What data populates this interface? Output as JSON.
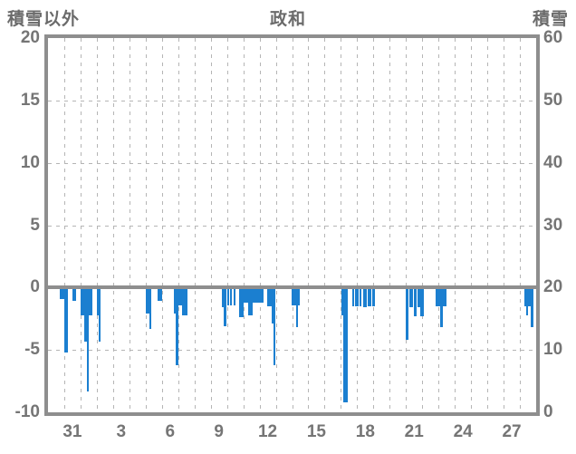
{
  "header": {
    "left_axis_title": "積雪以外",
    "chart_title": "政和",
    "right_axis_title": "積雪"
  },
  "colors": {
    "bar": "#1b7fd0",
    "frame": "#8e8e8e",
    "grid": "#b5b5b5",
    "text": "#757575"
  },
  "chart_data": {
    "type": "bar",
    "title": "政和",
    "left_axis": {
      "label": "積雪以外",
      "ticks": [
        20,
        15,
        10,
        5,
        0,
        -5,
        -10
      ],
      "range": [
        -10,
        20
      ],
      "gridline_values": [
        15,
        10,
        5,
        -5
      ]
    },
    "right_axis": {
      "label": "積雪",
      "ticks": [
        60,
        50,
        40,
        30,
        20,
        10,
        0
      ],
      "range": [
        0,
        60
      ]
    },
    "x_axis": {
      "days_shown": 30,
      "first_day": "30 (prev. month)",
      "tick_labels": [
        {
          "label": "31",
          "day_index": 1
        },
        {
          "label": "3",
          "day_index": 4
        },
        {
          "label": "6",
          "day_index": 7
        },
        {
          "label": "9",
          "day_index": 10
        },
        {
          "label": "12",
          "day_index": 13
        },
        {
          "label": "15",
          "day_index": 16
        },
        {
          "label": "18",
          "day_index": 19
        },
        {
          "label": "21",
          "day_index": 22
        },
        {
          "label": "24",
          "day_index": 25
        },
        {
          "label": "27",
          "day_index": 28
        }
      ],
      "grid": "dashed vertical line at every day boundary"
    },
    "bars_note": "d = fractional day start (0-30), len = fraction of a day, v = value on left axis (negative = drawn downward from zero line)",
    "bars": [
      {
        "d": 0.75,
        "len": 0.25,
        "v": -0.9
      },
      {
        "d": 1.0,
        "len": 0.25,
        "v": -5.2
      },
      {
        "d": 1.5,
        "len": 0.25,
        "v": -1.1
      },
      {
        "d": 2.0,
        "len": 0.5,
        "v": -2.2
      },
      {
        "d": 2.25,
        "len": 0.25,
        "v": -4.3
      },
      {
        "d": 2.37,
        "len": 0.11,
        "v": -8.3
      },
      {
        "d": 2.49,
        "len": 0.24,
        "v": -2.2
      },
      {
        "d": 2.99,
        "len": 0.25,
        "v": -2.2
      },
      {
        "d": 3.13,
        "len": 0.11,
        "v": -4.3
      },
      {
        "d": 6.01,
        "len": 0.33,
        "v": -2.1
      },
      {
        "d": 6.22,
        "len": 0.12,
        "v": -3.3
      },
      {
        "d": 6.76,
        "len": 0.28,
        "v": -1.1
      },
      {
        "d": 7.76,
        "len": 0.25,
        "v": -2.1
      },
      {
        "d": 7.85,
        "len": 0.14,
        "v": -6.2
      },
      {
        "d": 8.03,
        "len": 0.22,
        "v": -1.4
      },
      {
        "d": 8.25,
        "len": 0.34,
        "v": -2.2
      },
      {
        "d": 10.66,
        "len": 0.15,
        "v": -1.6
      },
      {
        "d": 10.81,
        "len": 0.13,
        "v": -3.1
      },
      {
        "d": 11.0,
        "len": 0.15,
        "v": -1.4
      },
      {
        "d": 11.19,
        "len": 0.13,
        "v": -1.4
      },
      {
        "d": 11.39,
        "len": 0.15,
        "v": -1.4
      },
      {
        "d": 11.76,
        "len": 0.26,
        "v": -2.4
      },
      {
        "d": 12.02,
        "len": 0.98,
        "v": -1.2
      },
      {
        "d": 12.3,
        "len": 0.28,
        "v": -2.2
      },
      {
        "d": 13.02,
        "len": 0.25,
        "v": -1.2
      },
      {
        "d": 13.47,
        "len": 0.5,
        "v": -1.5
      },
      {
        "d": 13.72,
        "len": 0.14,
        "v": -2.9
      },
      {
        "d": 13.86,
        "len": 0.13,
        "v": -6.2
      },
      {
        "d": 14.99,
        "len": 0.48,
        "v": -1.4
      },
      {
        "d": 15.25,
        "len": 0.13,
        "v": -3.2
      },
      {
        "d": 18.03,
        "len": 0.25,
        "v": -2.2
      },
      {
        "d": 18.17,
        "len": 0.27,
        "v": -9.2
      },
      {
        "d": 18.68,
        "len": 0.15,
        "v": -1.5
      },
      {
        "d": 18.86,
        "len": 0.22,
        "v": -1.5
      },
      {
        "d": 19.16,
        "len": 0.11,
        "v": -1.5
      },
      {
        "d": 19.35,
        "len": 0.22,
        "v": -1.6
      },
      {
        "d": 19.64,
        "len": 0.21,
        "v": -1.5
      },
      {
        "d": 19.94,
        "len": 0.15,
        "v": -1.5
      },
      {
        "d": 21.98,
        "len": 0.17,
        "v": -4.2
      },
      {
        "d": 22.2,
        "len": 0.22,
        "v": -1.6
      },
      {
        "d": 22.48,
        "len": 0.18,
        "v": -2.3
      },
      {
        "d": 22.72,
        "len": 0.17,
        "v": -1.6
      },
      {
        "d": 22.89,
        "len": 0.22,
        "v": -2.3
      },
      {
        "d": 23.82,
        "len": 0.65,
        "v": -1.5
      },
      {
        "d": 24.1,
        "len": 0.16,
        "v": -3.2
      },
      {
        "d": 29.29,
        "len": 0.56,
        "v": -1.5
      },
      {
        "d": 29.38,
        "len": 0.13,
        "v": -2.2
      },
      {
        "d": 29.68,
        "len": 0.17,
        "v": -3.2
      }
    ]
  }
}
